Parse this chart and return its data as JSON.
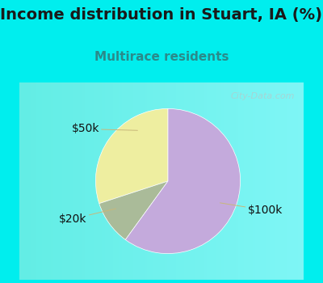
{
  "title": "Income distribution in Stuart, IA (%)",
  "subtitle": "Multirace residents",
  "title_color": "#1a1a1a",
  "subtitle_color": "#2a8a8a",
  "watermark": "City-Data.com",
  "slices": [
    {
      "label": "$50k",
      "value": 30,
      "color": "#EEEEA0"
    },
    {
      "label": "$20k",
      "value": 10,
      "color": "#AABB99"
    },
    {
      "label": "$100k",
      "value": 60,
      "color": "#C4AADC"
    }
  ],
  "bg_color": "#00EEEE",
  "chart_bg_color": "#FFFFFF",
  "label_font_size": 10,
  "title_font_size": 14,
  "subtitle_font_size": 11,
  "startangle": 90,
  "label_color": "#111111",
  "line_color": "#C8B87A"
}
